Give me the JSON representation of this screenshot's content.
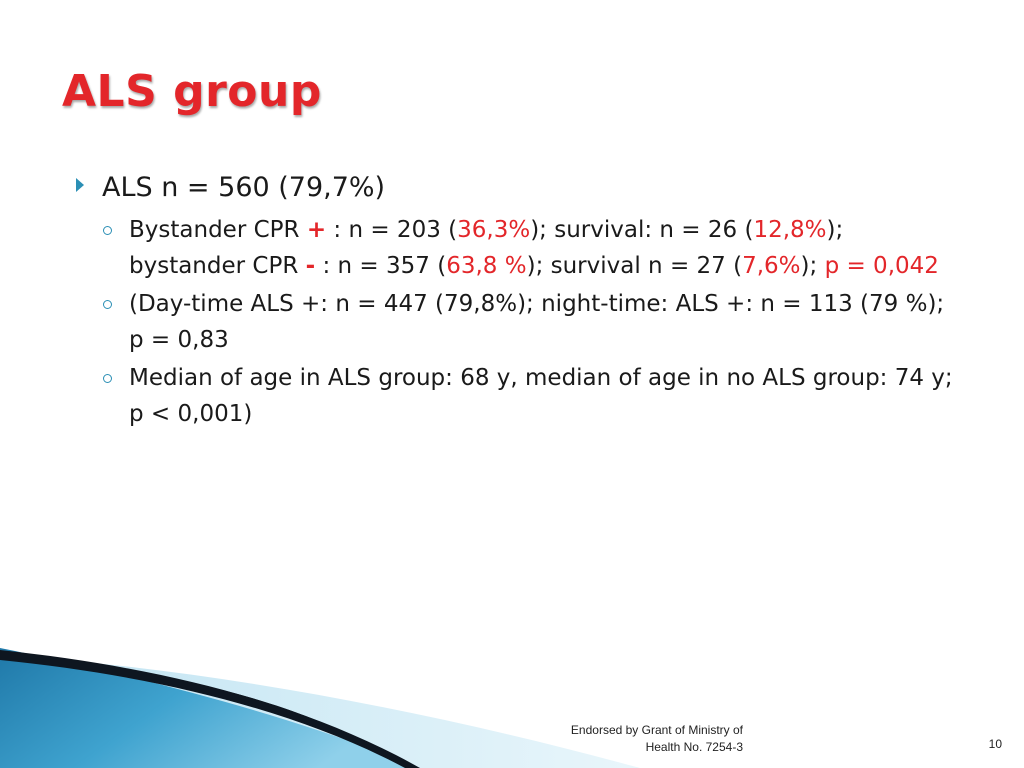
{
  "slide": {
    "title": "ALS group",
    "bullet1": "ALS n = 560 (79,7%)",
    "sub1": {
      "a": "Bystander CPR ",
      "plus": "+",
      "b": " : n = 203 (",
      "pct1": "36,3%",
      "c": "); survival: n = 26 (",
      "pct2": "12,8%",
      "d": "); bystander CPR ",
      "minus": "-",
      "e": " : n = 357 (",
      "pct3": "63,8 %",
      "f": "); survival n = 27 (",
      "pct4": "7,6%",
      "g": "); ",
      "pval": "p = 0,042"
    },
    "sub2": "(Day-time ALS +: n = 447 (79,8%); night-time: ALS +: n = 113 (79 %); p = 0,83",
    "sub3": "Median of  age in ALS group: 68 y, median of age in no ALS group:  74 y; p < 0,001)",
    "footer_line1": "Endorsed by Grant of Ministry of",
    "footer_line2": "Health No. 7254-3",
    "page_number": "10"
  },
  "colors": {
    "accent_red": "#e3262a",
    "bullet_blue": "#2b8fb5",
    "text": "#1a1a1a"
  },
  "icons": {
    "bullet_level1": "triangle-arrow-icon",
    "bullet_level2": "ring-bullet-icon"
  }
}
